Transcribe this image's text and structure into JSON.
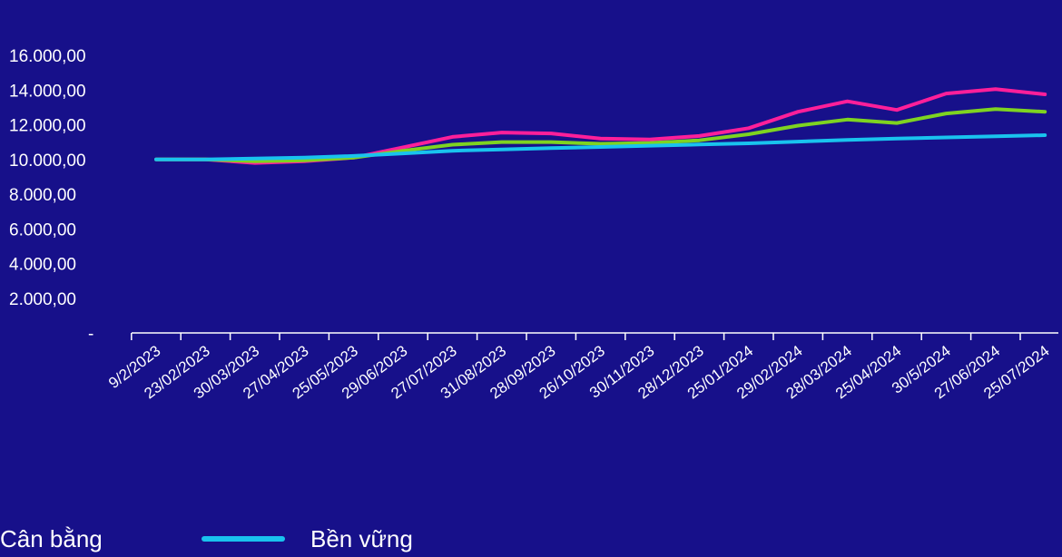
{
  "chart_data": {
    "type": "line",
    "x": [
      "9/2/2023",
      "23/02/2023",
      "30/03/2023",
      "27/04/2023",
      "25/05/2023",
      "29/06/2023",
      "27/07/2023",
      "31/08/2023",
      "28/09/2023",
      "26/10/2023",
      "30/11/2023",
      "28/12/2023",
      "25/01/2024",
      "29/02/2024",
      "28/03/2024",
      "25/04/2024",
      "30/5/2024",
      "27/06/2024",
      "25/07/2024"
    ],
    "y_ticks": [
      "16.000,00",
      "14.000,00",
      "12.000,00",
      "10.000,00",
      "8.000,00",
      "6.000,00",
      "4.000,00",
      "2.000,00",
      "-"
    ],
    "ylim": [
      0,
      16000
    ],
    "grid": false,
    "legend_position": "bottom-left",
    "series": [
      {
        "color": "#ff1f9a",
        "values": [
          10000,
          10000,
          9800,
          9900,
          10100,
          10700,
          11300,
          11550,
          11500,
          11200,
          11150,
          11350,
          11800,
          12750,
          13350,
          12850,
          13800,
          14050,
          13750
        ]
      },
      {
        "name": "Cân bằng",
        "color": "#7ed321",
        "values": [
          10000,
          10000,
          9900,
          9950,
          10100,
          10500,
          10850,
          11000,
          11000,
          10900,
          10950,
          11100,
          11450,
          11950,
          12300,
          12100,
          12650,
          12900,
          12750
        ]
      },
      {
        "name": "Bền vững",
        "color": "#19c3ee",
        "values": [
          10000,
          10000,
          10050,
          10100,
          10200,
          10350,
          10500,
          10580,
          10650,
          10720,
          10790,
          10860,
          10930,
          11030,
          11120,
          11200,
          11270,
          11330,
          11400
        ]
      }
    ]
  }
}
